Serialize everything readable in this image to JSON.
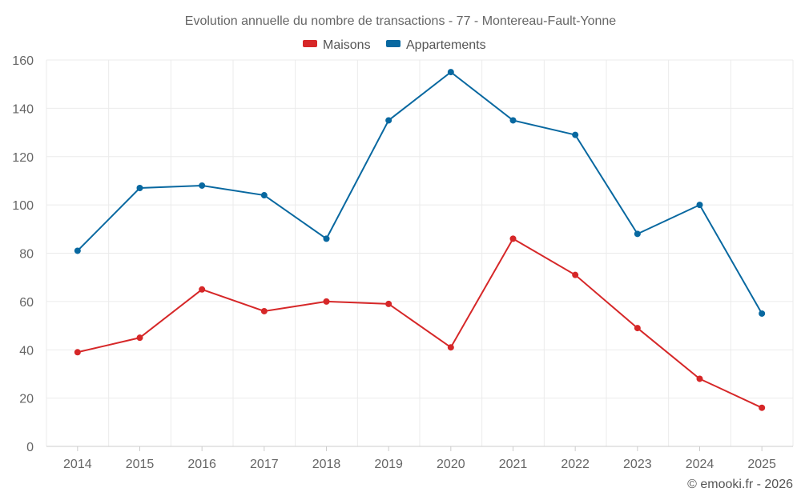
{
  "chart_data": {
    "type": "line",
    "title": "Evolution annuelle du nombre de transactions - 77 - Montereau-Fault-Yonne",
    "categories": [
      "2014",
      "2015",
      "2016",
      "2017",
      "2018",
      "2019",
      "2020",
      "2021",
      "2022",
      "2023",
      "2024",
      "2025"
    ],
    "series": [
      {
        "name": "Maisons",
        "color": "#d62728",
        "values": [
          39,
          45,
          65,
          56,
          60,
          59,
          41,
          86,
          71,
          49,
          28,
          16
        ]
      },
      {
        "name": "Appartements",
        "color": "#0868a0",
        "values": [
          81,
          107,
          108,
          104,
          86,
          135,
          155,
          135,
          129,
          88,
          100,
          55
        ]
      }
    ],
    "ylim": [
      0,
      160
    ],
    "yticks": [
      0,
      20,
      40,
      60,
      80,
      100,
      120,
      140,
      160
    ],
    "grid": true,
    "legend_position": "top-center",
    "xlabel": "",
    "ylabel": ""
  },
  "credit": "© emooki.fr - 2026"
}
